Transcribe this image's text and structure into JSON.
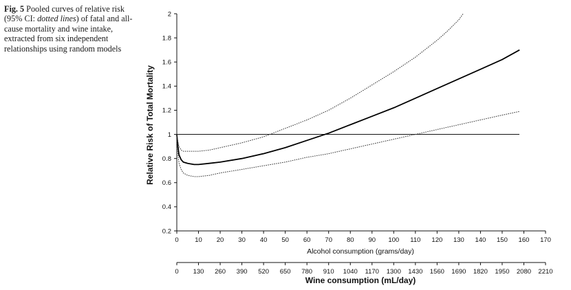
{
  "caption": {
    "fig_label": "Fig. 5",
    "text_part1": " Pooled curves of relative risk (95% CI: ",
    "text_italic": "dotted lines",
    "text_part2": ") of fatal and all-cause mortality and wine intake, extracted from six independent relationships using random models"
  },
  "chart_data": {
    "type": "line",
    "title": "",
    "ylabel": "Relative Risk of Total Mortality",
    "xlabel": "Alcohol consumption (grams/day)",
    "x2label": "Wine consumption (mL/day)",
    "xlim": [
      0,
      170
    ],
    "ylim": [
      0.2,
      2
    ],
    "x_ticks": [
      "0",
      "10",
      "20",
      "30",
      "40",
      "50",
      "60",
      "70",
      "80",
      "90",
      "100",
      "110",
      "120",
      "130",
      "140",
      "150",
      "160",
      "170"
    ],
    "x2_ticks": [
      "0",
      "130",
      "260",
      "390",
      "520",
      "650",
      "780",
      "910",
      "1040",
      "1170",
      "1300",
      "1430",
      "1560",
      "1690",
      "1820",
      "1950",
      "2080",
      "2210"
    ],
    "y_ticks": [
      "0.2",
      "0.4",
      "0.6",
      "0.8",
      "1",
      "1.2",
      "1.4",
      "1.6",
      "1.8",
      "2"
    ],
    "reference_line": 1,
    "grid": false,
    "series": [
      {
        "style": "solid",
        "x": [
          0,
          0.5,
          1,
          2,
          3,
          5,
          8,
          10,
          15,
          20,
          30,
          40,
          50,
          60,
          70,
          80,
          90,
          100,
          110,
          120,
          130,
          140,
          150,
          158
        ],
        "values": [
          1.0,
          0.9,
          0.83,
          0.79,
          0.77,
          0.76,
          0.75,
          0.75,
          0.76,
          0.77,
          0.8,
          0.84,
          0.89,
          0.95,
          1.01,
          1.08,
          1.15,
          1.22,
          1.3,
          1.38,
          1.46,
          1.54,
          1.62,
          1.7
        ]
      },
      {
        "style": "dotted",
        "x": [
          0,
          0.5,
          1,
          2,
          3,
          5,
          8,
          10,
          15,
          20,
          30,
          40,
          50,
          60,
          70,
          80,
          90,
          100,
          110,
          120,
          125,
          130,
          132
        ],
        "values": [
          1.0,
          0.94,
          0.9,
          0.87,
          0.86,
          0.86,
          0.86,
          0.86,
          0.87,
          0.89,
          0.93,
          0.98,
          1.05,
          1.12,
          1.2,
          1.3,
          1.41,
          1.52,
          1.64,
          1.78,
          1.86,
          1.95,
          2.0
        ]
      },
      {
        "style": "dotted",
        "x": [
          0,
          0.5,
          1,
          2,
          3,
          5,
          8,
          10,
          15,
          20,
          30,
          40,
          50,
          60,
          70,
          80,
          90,
          100,
          110,
          120,
          130,
          140,
          150,
          158
        ],
        "values": [
          1.0,
          0.84,
          0.76,
          0.71,
          0.68,
          0.66,
          0.65,
          0.65,
          0.66,
          0.68,
          0.71,
          0.74,
          0.77,
          0.81,
          0.84,
          0.88,
          0.92,
          0.96,
          1.0,
          1.04,
          1.08,
          1.12,
          1.16,
          1.19
        ]
      }
    ]
  }
}
